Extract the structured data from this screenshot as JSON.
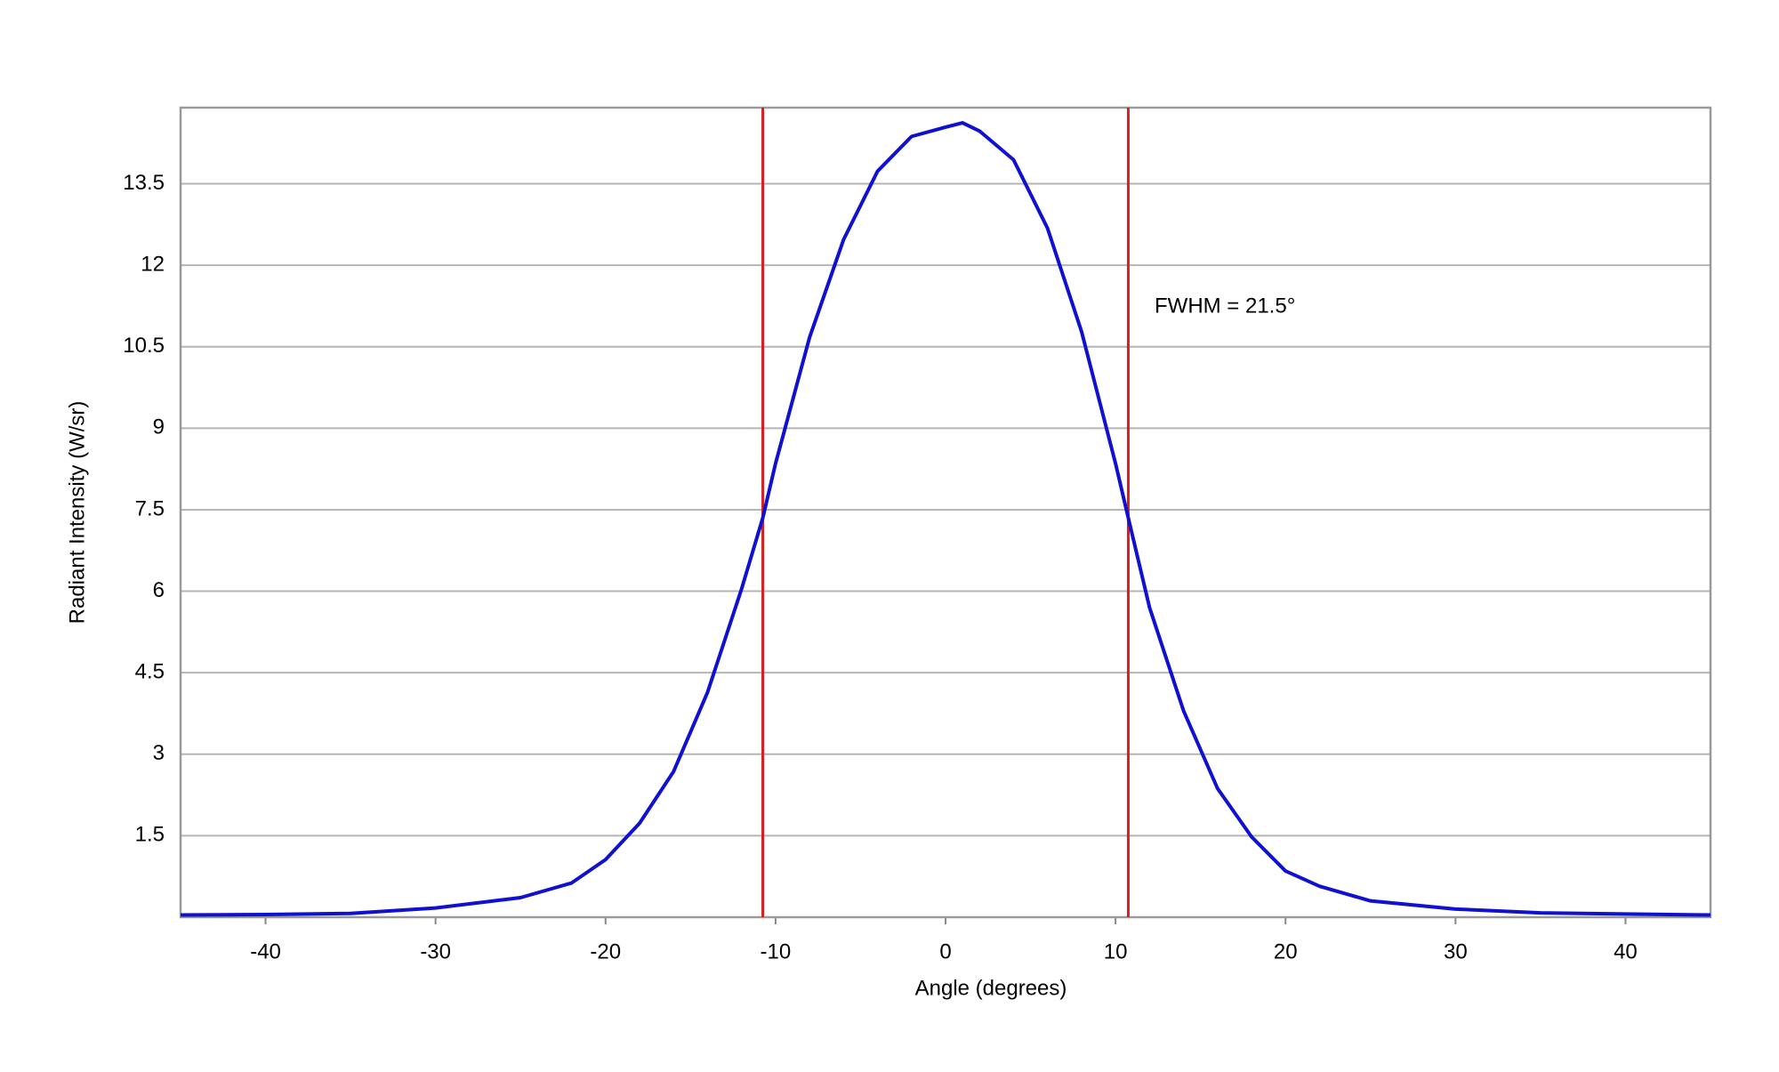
{
  "chart_data": {
    "type": "line",
    "x_label": "Angle (degrees)",
    "y_label": "Radiant Intensity (W/sr)",
    "annotation": "FWHM = 21.5°",
    "xlim": [
      -45,
      45
    ],
    "ylim": [
      0,
      14.9
    ],
    "xticks": [
      -40,
      -30,
      -20,
      -10,
      0,
      10,
      20,
      30,
      40
    ],
    "yticks": [
      1.5,
      3,
      4.5,
      6,
      7.5,
      9,
      10.5,
      12,
      13.5
    ],
    "grid": true,
    "vlines": {
      "color": "#d42020",
      "values": [
        -10.75,
        10.75
      ]
    },
    "series": [
      {
        "color": "#1010d0",
        "x": [
          -45,
          -40,
          -35,
          -30,
          -25,
          -22,
          -20,
          -18,
          -16,
          -14,
          -12,
          -10.75,
          -10,
          -8,
          -6,
          -4,
          -2,
          0,
          1,
          2,
          4,
          6,
          8,
          10,
          10.75,
          12,
          14,
          16,
          18,
          20,
          22,
          25,
          30,
          35,
          40,
          45
        ],
        "values": [
          0.04,
          0.05,
          0.07,
          0.17,
          0.36,
          0.63,
          1.06,
          1.73,
          2.68,
          4.14,
          6.04,
          7.35,
          8.35,
          10.67,
          12.47,
          13.73,
          14.37,
          14.54,
          14.62,
          14.47,
          13.94,
          12.68,
          10.78,
          8.35,
          7.35,
          5.7,
          3.8,
          2.37,
          1.48,
          0.85,
          0.57,
          0.3,
          0.15,
          0.08,
          0.06,
          0.04
        ]
      }
    ]
  }
}
